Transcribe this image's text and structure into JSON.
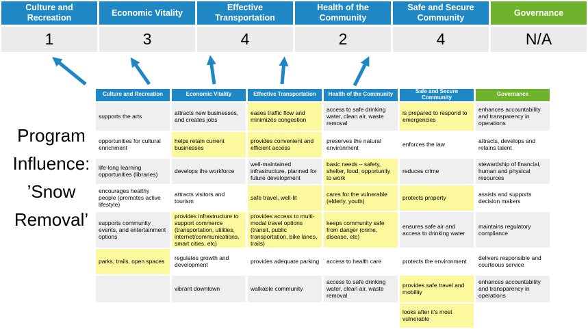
{
  "program_label": {
    "full": "Program Influence: ’Snow Removal’",
    "lines": [
      "Program",
      "Influence:",
      "’Snow",
      "Removal’"
    ]
  },
  "summary": {
    "columns": [
      {
        "label": "Culture and Recreation",
        "score": "1"
      },
      {
        "label": "Economic Vitality",
        "score": "3"
      },
      {
        "label": "Effective Transportation",
        "score": "4"
      },
      {
        "label": "Health of the Community",
        "score": "2"
      },
      {
        "label": "Safe and Secure Community",
        "score": "4"
      },
      {
        "label": "Governance",
        "score": "N/A"
      }
    ]
  },
  "colors": {
    "header_blue": "#1F87C4",
    "governance_green": "#6FB22B",
    "score_row_gray": "#EBEBEB",
    "band_gray": "#EFEFEF",
    "highlight_yellow": "#FBF89E",
    "arrow_blue": "#1E86C3"
  },
  "arrows": {
    "count": 5,
    "meaning": "influence-arrow"
  },
  "matrix": {
    "headers": [
      "Culture and Recreation",
      "Economic Vitality",
      "Effective Transportation",
      "Health of the Community",
      "Safe and Secure Community",
      "Governance"
    ],
    "rows": [
      {
        "cells": [
          {
            "t": "supports the arts",
            "hl": false
          },
          {
            "t": "attracts new businesses, and creates jobs",
            "hl": false
          },
          {
            "t": "eases traffic flow and minimizes congestion",
            "hl": true
          },
          {
            "t": "access to safe drinking water, clean air, waste removal",
            "hl": false
          },
          {
            "t": "is prepared to respond to emergencies",
            "hl": true
          },
          {
            "t": "enhances accountability and transparency in operations",
            "hl": false
          }
        ]
      },
      {
        "cells": [
          {
            "t": "opportunities for cultural enrichment",
            "hl": false
          },
          {
            "t": "helps retain current businesses",
            "hl": true
          },
          {
            "t": "provides convenient and efficient access",
            "hl": true
          },
          {
            "t": "preserves the natural environment",
            "hl": false
          },
          {
            "t": "enforces the law",
            "hl": false
          },
          {
            "t": "attracts, develops and retains talent",
            "hl": false
          }
        ]
      },
      {
        "cells": [
          {
            "t": "life-long learning opportunities (libraries)",
            "hl": false
          },
          {
            "t": "develops the workforce",
            "hl": false
          },
          {
            "t": "well-maintained infrastructure, planned for future development",
            "hl": false
          },
          {
            "t": "basic needs – safety, shelter, food, opportunity to work",
            "hl": true
          },
          {
            "t": "reduces crime",
            "hl": false
          },
          {
            "t": "stewardship of financial, human and physical resources",
            "hl": false
          }
        ]
      },
      {
        "cells": [
          {
            "t": "encourages healthy people (promotes active lifestyle)",
            "hl": false
          },
          {
            "t": "attracts visitors and tourism",
            "hl": false
          },
          {
            "t": "safe travel, well-lit",
            "hl": true
          },
          {
            "t": "cares for the vulnerable (elderly, youth)",
            "hl": true
          },
          {
            "t": "protects property",
            "hl": true
          },
          {
            "t": "assists and supports decision makers",
            "hl": false
          }
        ]
      },
      {
        "cells": [
          {
            "t": "supports community events, and entertainment options",
            "hl": false
          },
          {
            "t": "provides infrastructure to support commerce (transportation, utilities, internet/communications, smart cities, etc)",
            "hl": true
          },
          {
            "t": "provides access to multi-modal travel options (transit, public transportation, bike lanes, trails)",
            "hl": true
          },
          {
            "t": "keeps community safe from danger (crime, disease, etc)",
            "hl": true
          },
          {
            "t": "ensures safe air and access to drinking water",
            "hl": false
          },
          {
            "t": "maintains regulatory compliance",
            "hl": false
          }
        ]
      },
      {
        "cells": [
          {
            "t": "parks, trails, open spaces",
            "hl": true
          },
          {
            "t": "regulates growth and development",
            "hl": false
          },
          {
            "t": "provides adequate parking",
            "hl": false
          },
          {
            "t": "access to health care",
            "hl": false
          },
          {
            "t": "protects the environment",
            "hl": false
          },
          {
            "t": "delivers responsible and courteous service",
            "hl": false
          }
        ]
      },
      {
        "cells": [
          {
            "t": "",
            "hl": false
          },
          {
            "t": "vibrant downtown",
            "hl": false
          },
          {
            "t": "walkable community",
            "hl": false
          },
          {
            "t": "access to safe drinking water, clean air, waste removal",
            "hl": false
          },
          {
            "t": "provides safe travel and mobility",
            "hl": true
          },
          {
            "t": "enhances accountability and transparency in operations",
            "hl": false
          }
        ]
      },
      {
        "cells": [
          {
            "t": "",
            "hl": false
          },
          {
            "t": "",
            "hl": false
          },
          {
            "t": "",
            "hl": false
          },
          {
            "t": "",
            "hl": false
          },
          {
            "t": "looks after it's most vulnerable",
            "hl": true
          },
          {
            "t": "",
            "hl": false
          }
        ]
      }
    ]
  }
}
